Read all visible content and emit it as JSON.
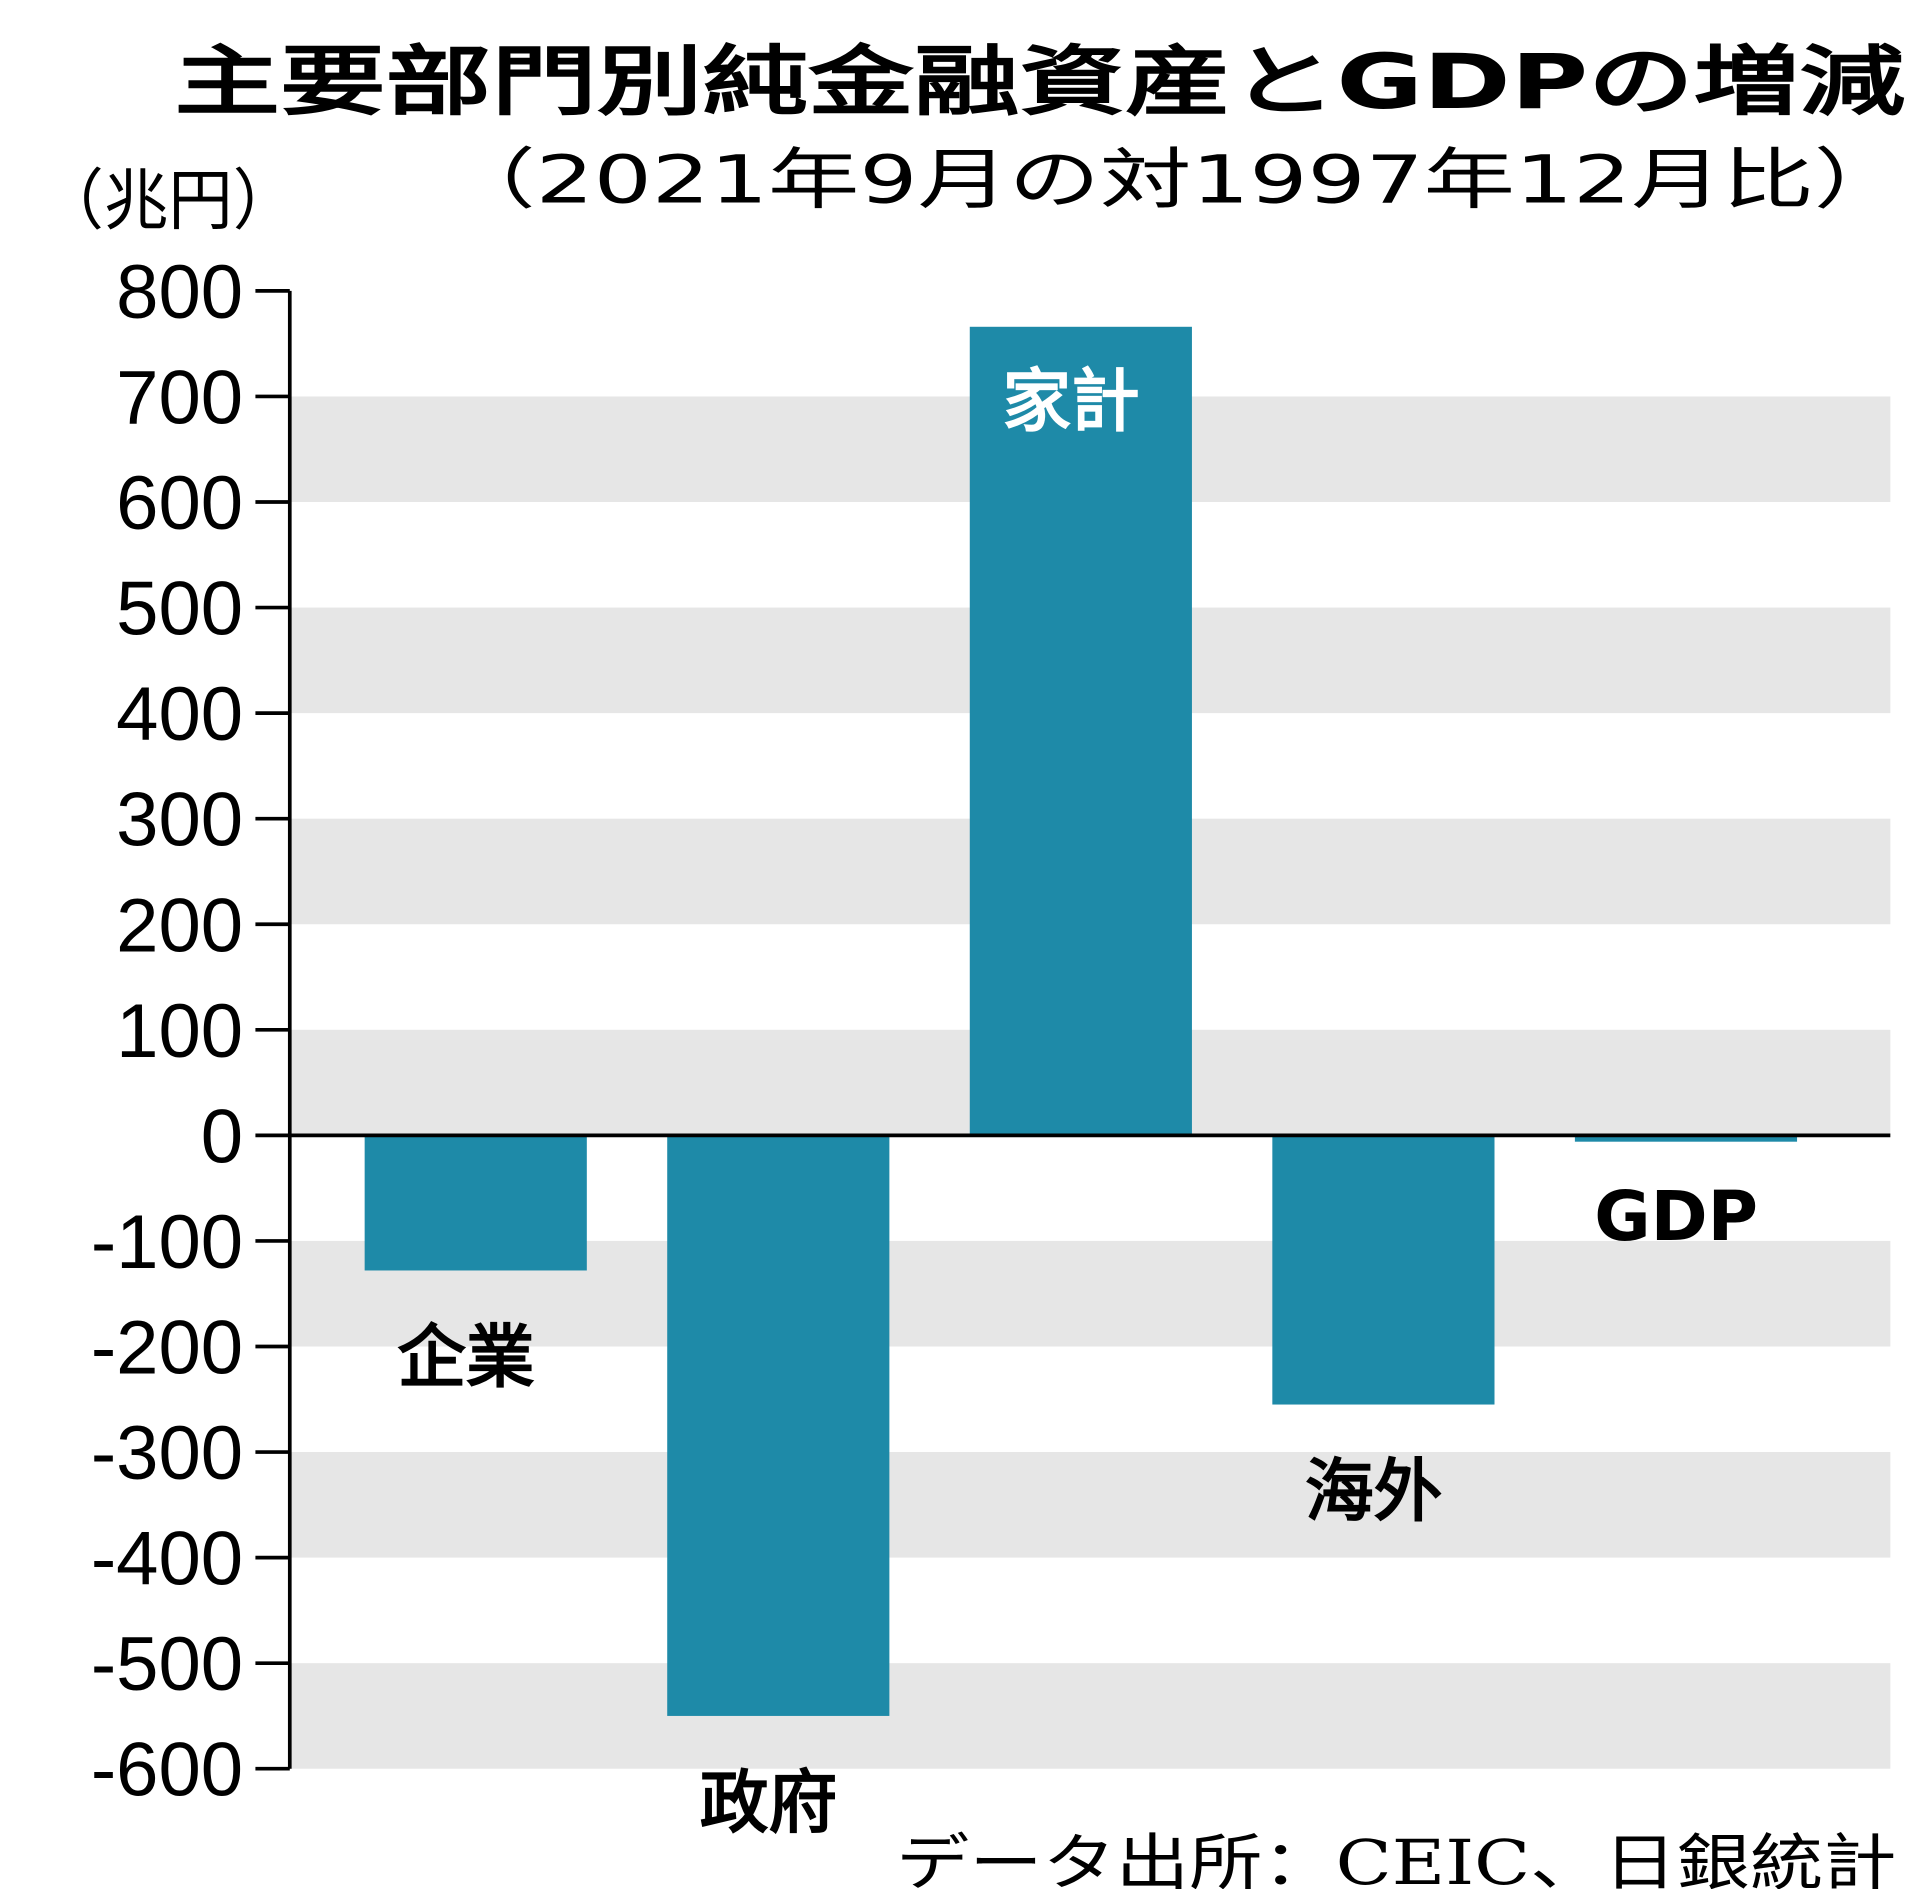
{
  "chart_data": {
    "type": "bar",
    "title": "主要部門別純金融資産とGDPの増減",
    "subtitle": "（2021年9月の対1997年12月比）",
    "ylabel": "（兆円）",
    "categories": [
      "企業",
      "政府",
      "家計",
      "海外",
      "GDP"
    ],
    "values": [
      -128,
      -550,
      766,
      -255,
      -6
    ],
    "ylim": [
      -600,
      800
    ],
    "yticks": [
      800,
      700,
      600,
      500,
      400,
      300,
      200,
      100,
      0,
      -100,
      -200,
      -300,
      -400,
      -500,
      -600
    ],
    "grid": "alternating horizontal bands",
    "legend": "none",
    "source": "データ出所：CEIC、日銀統計",
    "colors": {
      "bar": "#1e8aa8",
      "band": "#e6e6e6",
      "label_inside": "#ffffff",
      "label_outside": "#000000"
    }
  }
}
